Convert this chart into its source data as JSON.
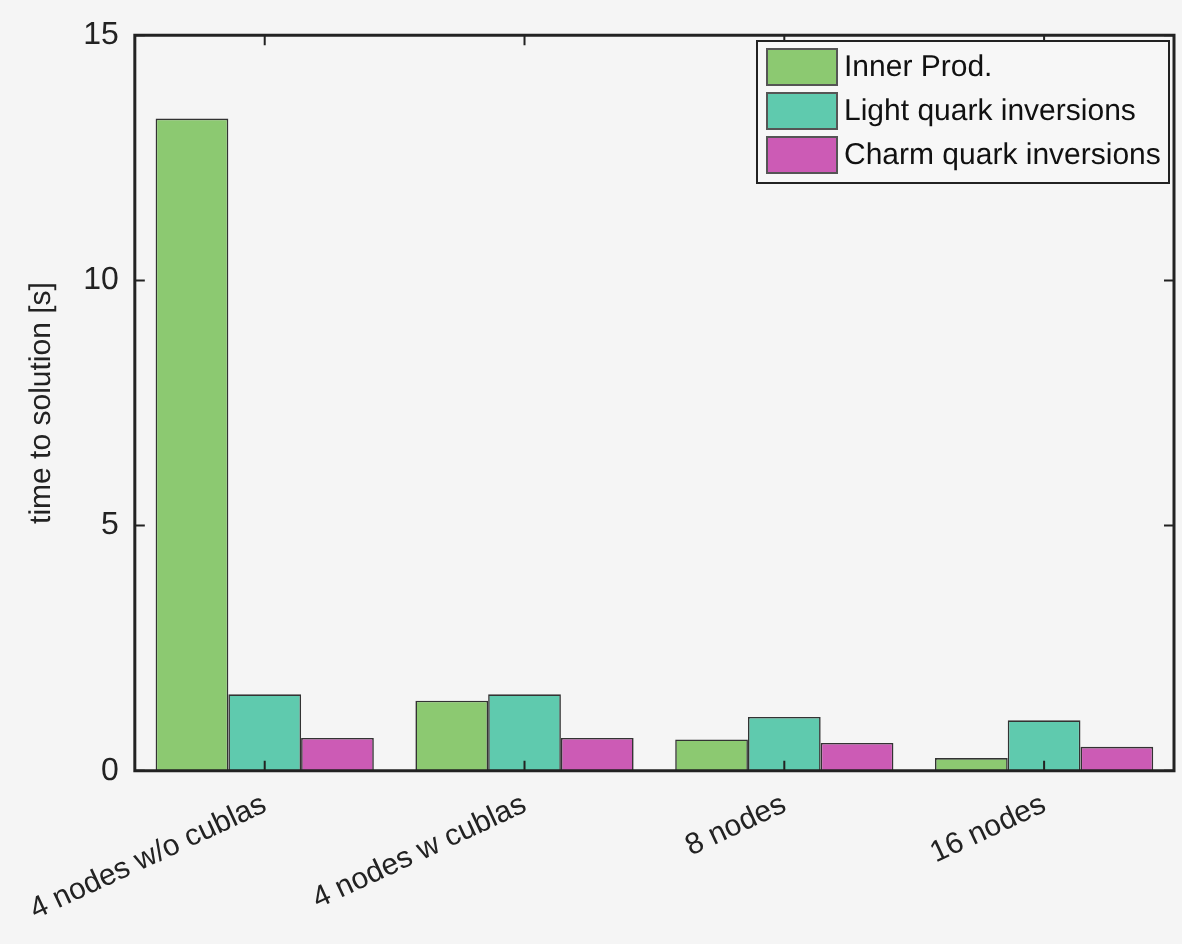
{
  "chart_data": {
    "type": "bar",
    "ylabel": "time to solution [s]",
    "categories": [
      "4 nodes w/o cublas",
      "4 nodes w cublas",
      "8 nodes",
      "16 nodes"
    ],
    "series": [
      {
        "name": "Inner Prod.",
        "color": "#8cc971",
        "values": [
          13.3,
          1.43,
          0.64,
          0.26
        ]
      },
      {
        "name": "Light quark inversions",
        "color": "#5fcaae",
        "values": [
          1.56,
          1.56,
          1.1,
          1.03
        ]
      },
      {
        "name": "Charm quark inversions",
        "color": "#cc5bb5",
        "values": [
          0.67,
          0.67,
          0.57,
          0.49
        ]
      }
    ],
    "ylim": [
      0,
      15
    ],
    "yticks": [
      0,
      5,
      10,
      15
    ],
    "grid": false,
    "legend": "top right"
  }
}
